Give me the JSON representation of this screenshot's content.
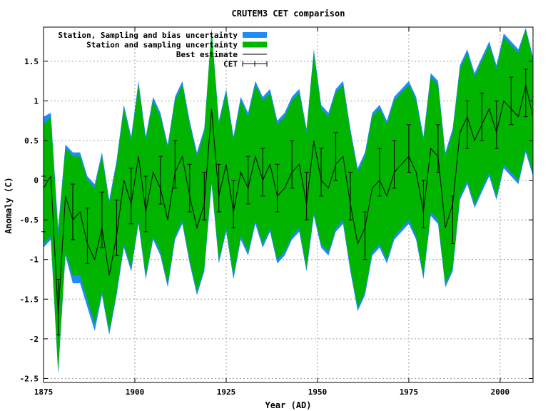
{
  "chart_data": {
    "type": "area",
    "title": "CRUTEM3 CET comparison",
    "xlabel": "Year (AD)",
    "ylabel": "Anomaly (C)",
    "xlim": [
      1875,
      2009
    ],
    "ylim": [
      -2.55,
      1.93
    ],
    "xticks": [
      1875,
      1900,
      1925,
      1950,
      1975,
      2000
    ],
    "yticks": [
      -2.5,
      -2,
      -1.5,
      -1,
      -0.5,
      0,
      0.5,
      1,
      1.5
    ],
    "ytick_labels": [
      "-2.5",
      "-2",
      "-1.5",
      "-1",
      "-0.5",
      "0",
      "0.5",
      "1",
      "1.5"
    ],
    "grid": true,
    "legend_position": "top-left",
    "legend": [
      {
        "name": "Station, Sampling and bias uncertainty",
        "color": "#1e8cf0",
        "kind": "fill"
      },
      {
        "name": "Station and sampling uncertainty",
        "color": "#00b400",
        "kind": "fill"
      },
      {
        "name": "Best estimate",
        "color": "#000000",
        "kind": "line"
      },
      {
        "name": "CET",
        "color": "#000000",
        "kind": "errorbar"
      }
    ],
    "best_estimate": {
      "x": [
        1875,
        1877,
        1879,
        1881,
        1883,
        1885,
        1887,
        1889,
        1891,
        1893,
        1895,
        1897,
        1899,
        1901,
        1903,
        1905,
        1907,
        1909,
        1911,
        1913,
        1915,
        1917,
        1919,
        1921,
        1923,
        1925,
        1927,
        1929,
        1931,
        1933,
        1935,
        1937,
        1939,
        1941,
        1943,
        1945,
        1947,
        1949,
        1951,
        1953,
        1955,
        1957,
        1959,
        1961,
        1963,
        1965,
        1967,
        1969,
        1971,
        1973,
        1975,
        1977,
        1979,
        1981,
        1983,
        1985,
        1987,
        1989,
        1991,
        1993,
        1995,
        1997,
        1999,
        2001,
        2003,
        2005,
        2007,
        2009
      ],
      "y": [
        -0.1,
        0.05,
        -1.7,
        -0.2,
        -0.5,
        -0.4,
        -0.8,
        -1.0,
        -0.6,
        -1.2,
        -0.7,
        0.0,
        -0.3,
        0.3,
        -0.4,
        0.1,
        -0.1,
        -0.5,
        0.1,
        0.3,
        -0.2,
        -0.6,
        -0.3,
        0.9,
        -0.2,
        0.2,
        -0.4,
        0.1,
        -0.1,
        0.3,
        0.0,
        0.2,
        -0.2,
        -0.1,
        0.1,
        0.2,
        -0.3,
        0.5,
        0.0,
        -0.1,
        0.2,
        0.3,
        -0.3,
        -0.8,
        -0.6,
        -0.1,
        0.0,
        -0.2,
        0.1,
        0.2,
        0.3,
        0.1,
        -0.4,
        0.4,
        0.3,
        -0.6,
        -0.3,
        0.6,
        0.8,
        0.5,
        0.7,
        0.9,
        0.6,
        1.0,
        0.9,
        0.8,
        1.2,
        0.8
      ]
    },
    "uncertainty_band": {
      "x": [
        1875,
        1877,
        1879,
        1881,
        1883,
        1885,
        1887,
        1889,
        1891,
        1893,
        1895,
        1897,
        1899,
        1901,
        1903,
        1905,
        1907,
        1909,
        1911,
        1913,
        1915,
        1917,
        1919,
        1921,
        1923,
        1925,
        1927,
        1929,
        1931,
        1933,
        1935,
        1937,
        1939,
        1941,
        1943,
        1945,
        1947,
        1949,
        1951,
        1953,
        1955,
        1957,
        1959,
        1961,
        1963,
        1965,
        1967,
        1969,
        1971,
        1973,
        1975,
        1977,
        1979,
        1981,
        1983,
        1985,
        1987,
        1989,
        1991,
        1993,
        1995,
        1997,
        1999,
        2001,
        2003,
        2005,
        2007,
        2009
      ],
      "upper": [
        0.7,
        0.8,
        -0.7,
        0.4,
        0.3,
        0.3,
        0.0,
        -0.1,
        0.3,
        -0.3,
        0.2,
        0.9,
        0.5,
        1.2,
        0.5,
        1.0,
        0.8,
        0.4,
        1.0,
        1.2,
        0.7,
        0.3,
        0.6,
        1.9,
        0.7,
        1.1,
        0.5,
        1.0,
        0.8,
        1.2,
        1.0,
        1.1,
        0.7,
        0.8,
        1.0,
        1.1,
        0.6,
        1.6,
        0.9,
        0.8,
        1.1,
        1.2,
        0.6,
        0.1,
        0.3,
        0.8,
        0.9,
        0.7,
        1.0,
        1.1,
        1.2,
        1.0,
        0.5,
        1.3,
        1.2,
        0.3,
        0.6,
        1.4,
        1.6,
        1.3,
        1.5,
        1.7,
        1.4,
        1.8,
        1.7,
        1.6,
        1.9,
        1.5
      ],
      "lower": [
        -0.8,
        -0.7,
        -2.4,
        -0.9,
        -1.2,
        -1.2,
        -1.5,
        -1.8,
        -1.4,
        -1.9,
        -1.4,
        -0.8,
        -1.1,
        -0.5,
        -1.2,
        -0.7,
        -0.9,
        -1.3,
        -0.7,
        -0.5,
        -1.0,
        -1.4,
        -1.1,
        0.0,
        -1.0,
        -0.6,
        -1.2,
        -0.7,
        -0.9,
        -0.5,
        -0.8,
        -0.6,
        -1.0,
        -0.9,
        -0.7,
        -0.6,
        -1.1,
        -0.4,
        -0.8,
        -0.9,
        -0.6,
        -0.5,
        -1.1,
        -1.6,
        -1.4,
        -0.9,
        -0.8,
        -1.0,
        -0.7,
        -0.6,
        -0.5,
        -0.7,
        -1.2,
        -0.4,
        -0.5,
        -1.3,
        -1.1,
        -0.2,
        0.0,
        -0.3,
        -0.1,
        0.1,
        -0.2,
        0.2,
        0.1,
        0.0,
        0.4,
        0.1
      ],
      "bias_upper": [
        0.8,
        0.85,
        -0.6,
        0.45,
        0.35,
        0.35,
        0.05,
        -0.05,
        0.35,
        -0.25,
        0.25,
        0.95,
        0.55,
        1.25,
        0.55,
        1.05,
        0.85,
        0.45,
        1.05,
        1.25,
        0.75,
        0.35,
        0.65,
        1.92,
        0.75,
        1.15,
        0.55,
        1.05,
        0.85,
        1.25,
        1.05,
        1.15,
        0.75,
        0.85,
        1.05,
        1.15,
        0.65,
        1.65,
        0.95,
        0.85,
        1.15,
        1.25,
        0.65,
        0.15,
        0.35,
        0.85,
        0.95,
        0.75,
        1.05,
        1.15,
        1.25,
        1.05,
        0.55,
        1.35,
        1.25,
        0.35,
        0.65,
        1.45,
        1.65,
        1.35,
        1.55,
        1.75,
        1.45,
        1.85,
        1.75,
        1.65,
        1.92,
        1.55
      ],
      "bias_lower": [
        -0.85,
        -0.75,
        -2.45,
        -0.95,
        -1.3,
        -1.3,
        -1.6,
        -1.9,
        -1.45,
        -1.95,
        -1.45,
        -0.85,
        -1.15,
        -0.55,
        -1.25,
        -0.75,
        -0.95,
        -1.35,
        -0.75,
        -0.55,
        -1.05,
        -1.45,
        -1.15,
        -0.05,
        -1.05,
        -0.65,
        -1.25,
        -0.75,
        -0.95,
        -0.55,
        -0.85,
        -0.65,
        -1.05,
        -0.95,
        -0.75,
        -0.65,
        -1.15,
        -0.45,
        -0.85,
        -0.95,
        -0.65,
        -0.55,
        -1.15,
        -1.65,
        -1.45,
        -0.95,
        -0.85,
        -1.05,
        -0.75,
        -0.65,
        -0.55,
        -0.75,
        -1.25,
        -0.45,
        -0.55,
        -1.35,
        -1.15,
        -0.25,
        -0.05,
        -0.35,
        -0.15,
        0.05,
        -0.25,
        0.15,
        0.05,
        -0.05,
        0.35,
        0.05
      ]
    },
    "cet": {
      "x": [
        1875,
        1879,
        1883,
        1887,
        1891,
        1895,
        1899,
        1903,
        1907,
        1911,
        1915,
        1919,
        1923,
        1927,
        1931,
        1935,
        1939,
        1943,
        1947,
        1951,
        1955,
        1959,
        1963,
        1967,
        1971,
        1975,
        1979,
        1983,
        1987,
        1991,
        1995,
        1999,
        2003,
        2007
      ],
      "y": [
        -0.3,
        -1.6,
        -0.4,
        -0.7,
        -0.5,
        -0.6,
        -0.2,
        -0.3,
        0.0,
        0.2,
        -0.1,
        -0.2,
        -0.1,
        -0.3,
        0.0,
        0.1,
        -0.1,
        0.2,
        -0.2,
        0.1,
        0.3,
        -0.2,
        -0.7,
        0.1,
        0.2,
        0.4,
        -0.3,
        0.4,
        -0.5,
        0.7,
        0.8,
        0.7,
        1.0,
        1.1
      ],
      "err": [
        0.35,
        0.35,
        0.35,
        0.35,
        0.35,
        0.35,
        0.35,
        0.35,
        0.3,
        0.3,
        0.3,
        0.3,
        0.3,
        0.3,
        0.3,
        0.3,
        0.3,
        0.3,
        0.3,
        0.3,
        0.3,
        0.3,
        0.3,
        0.3,
        0.3,
        0.3,
        0.3,
        0.3,
        0.3,
        0.3,
        0.3,
        0.3,
        0.3,
        0.3
      ]
    }
  }
}
